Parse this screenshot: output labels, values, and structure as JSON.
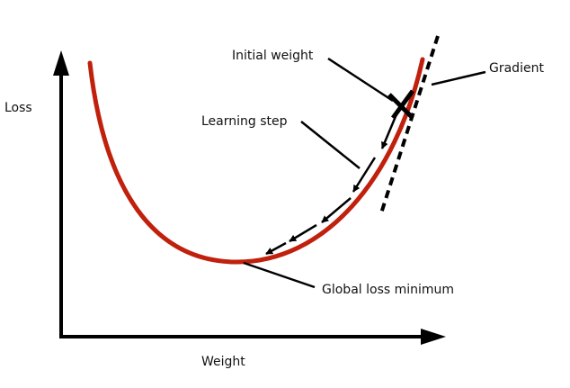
{
  "diagram": {
    "y_axis_label": "Loss",
    "x_axis_label": "Weight",
    "labels": {
      "initial_weight": "Initial weight",
      "gradient": "Gradient",
      "learning_step": "Learning step",
      "global_minimum": "Global loss minimum"
    },
    "colors": {
      "curve": "#c0200c",
      "ink": "#000000"
    },
    "icons": {
      "start_marker": "x-mark-icon",
      "step_arrows": "arrow-head-icon"
    }
  }
}
